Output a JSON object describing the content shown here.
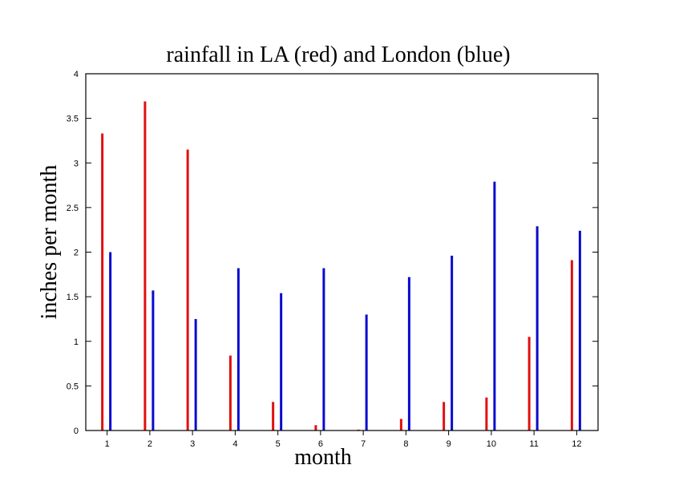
{
  "chart_data": {
    "type": "bar",
    "title": "rainfall in LA (red) and London (blue)",
    "xlabel": "month",
    "ylabel": "inches per month",
    "categories": [
      "1",
      "2",
      "3",
      "4",
      "5",
      "6",
      "7",
      "8",
      "9",
      "10",
      "11",
      "12"
    ],
    "xlim": [
      0.5,
      12.5
    ],
    "ylim": [
      0,
      4
    ],
    "yticks": [
      0,
      0.5,
      1,
      1.5,
      2,
      2.5,
      3,
      3.5,
      4
    ],
    "ytick_labels": [
      "0",
      "0.5",
      "1",
      "1.5",
      "2",
      "2.5",
      "3",
      "3.5",
      "4"
    ],
    "grid": false,
    "legend": null,
    "series": [
      {
        "name": "LA",
        "color": "#e01010",
        "values": [
          3.33,
          3.69,
          3.15,
          0.84,
          0.32,
          0.06,
          0.01,
          0.13,
          0.32,
          0.37,
          1.05,
          1.91
        ]
      },
      {
        "name": "London",
        "color": "#0a0ad0",
        "values": [
          2.0,
          1.57,
          1.25,
          1.82,
          1.54,
          1.82,
          1.3,
          1.72,
          1.96,
          2.79,
          2.29,
          2.24
        ]
      }
    ]
  }
}
